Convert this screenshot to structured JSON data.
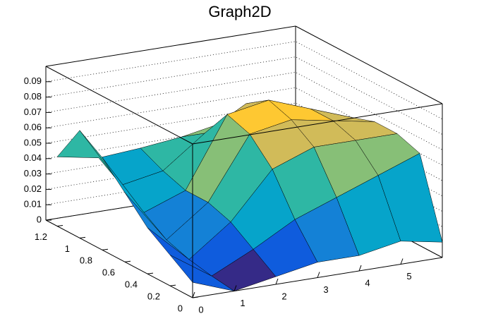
{
  "chart_data": {
    "type": "surface",
    "title": "Graph2D",
    "x": [
      0,
      1,
      2,
      3,
      4,
      5,
      6
    ],
    "y": [
      0,
      0.2,
      0.4,
      0.6,
      0.8,
      1,
      1.2
    ],
    "z": [
      [
        0.01,
        0,
        0.005,
        0.01,
        0.01,
        0.015,
        0.01
      ],
      [
        0.02,
        0.002,
        0.015,
        0.03,
        0.04,
        0.05,
        0.06
      ],
      [
        0.03,
        0.005,
        0.025,
        0.055,
        0.065,
        0.065,
        0.065
      ],
      [
        0.045,
        0.01,
        0.03,
        0.07,
        0.075,
        0.07,
        0.065
      ],
      [
        0.06,
        0.02,
        0.03,
        0.075,
        0.08,
        0.07,
        0.06
      ],
      [
        0.07,
        0.03,
        0.035,
        0.055,
        0.07,
        0.06,
        0.055
      ],
      [
        0.045,
        0.04,
        0.042,
        0.045,
        0.05,
        0.055,
        0.05
      ]
    ],
    "xlim": [
      0,
      6
    ],
    "ylim": [
      0,
      1.3
    ],
    "zlim": [
      0,
      0.1
    ],
    "xticks": [
      0,
      1,
      2,
      3,
      4,
      5
    ],
    "yticks": [
      0,
      0.2,
      0.4,
      0.6,
      0.8,
      1,
      1.2
    ],
    "zticks": [
      0,
      0.01,
      0.02,
      0.03,
      0.04,
      0.05,
      0.06,
      0.07,
      0.08,
      0.09
    ],
    "palette": [
      "#352a87",
      "#0f5cdd",
      "#1481d6",
      "#06a4ca",
      "#2eb7a4",
      "#87bf77",
      "#d1bb59",
      "#fec832",
      "#f9fb0e"
    ],
    "grid": true
  }
}
